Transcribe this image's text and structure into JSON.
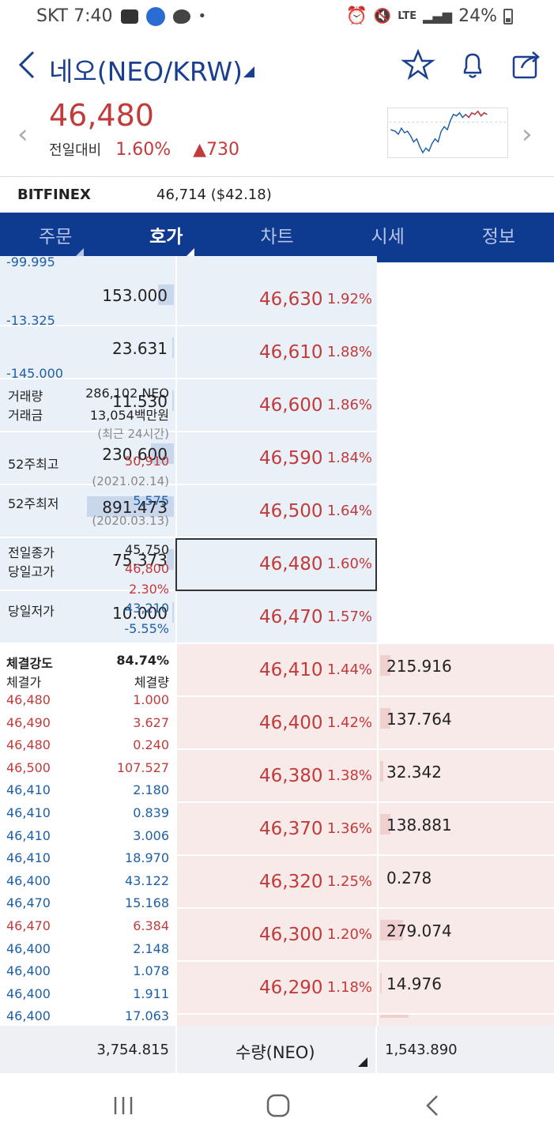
{
  "status": {
    "carrier_time": "SKT 7:40",
    "signal": "LTE",
    "battery": "24%"
  },
  "header": {
    "title": "네오(NEO/KRW)"
  },
  "price": {
    "current": "46,480",
    "change_label": "전일대비",
    "change_pct": "1.60%",
    "change_abs": "▲730"
  },
  "exchange": {
    "name": "BITFINEX",
    "value": "46,714 ($42.18)"
  },
  "tabs": [
    "주문",
    "호가",
    "차트",
    "시세",
    "정보"
  ],
  "asks": [
    {
      "qty": "153.000",
      "change": "-13.325",
      "price": "46,630",
      "pct": "1.92%",
      "bar": 0.09
    },
    {
      "qty": "23.631",
      "change": "-145.000",
      "price": "46,610",
      "pct": "1.88%",
      "bar": 0.01
    },
    {
      "qty": "11.530",
      "change": "",
      "price": "46,600",
      "pct": "1.86%",
      "bar": 0.01
    },
    {
      "qty": "230.600",
      "change": "",
      "price": "46,590",
      "pct": "1.84%",
      "bar": 0.13
    },
    {
      "qty": "891.473",
      "change": "",
      "price": "46,500",
      "pct": "1.64%",
      "bar": 0.5
    },
    {
      "qty": "75.373",
      "change": "",
      "price": "46,480",
      "pct": "1.60%",
      "bar": 0.04
    },
    {
      "qty": "10.000",
      "change": "",
      "price": "46,470",
      "pct": "1.57%",
      "bar": 0.01
    }
  ],
  "top_partial": "-99.995",
  "bids": [
    {
      "price": "46,410",
      "pct": "1.44%",
      "qty": "215.916",
      "bar": 0.06
    },
    {
      "price": "46,400",
      "pct": "1.42%",
      "qty": "137.764",
      "bar": 0.06
    },
    {
      "price": "46,380",
      "pct": "1.38%",
      "qty": "32.342",
      "bar": 0.02
    },
    {
      "price": "46,370",
      "pct": "1.36%",
      "qty": "138.881",
      "bar": 0.06
    },
    {
      "price": "46,320",
      "pct": "1.25%",
      "qty": "0.278",
      "bar": 0.0
    },
    {
      "price": "46,300",
      "pct": "1.20%",
      "qty": "279.074",
      "bar": 0.13
    },
    {
      "price": "46,290",
      "pct": "1.18%",
      "qty": "14.976",
      "bar": 0.01
    }
  ],
  "info": {
    "vol_label": "거래량",
    "vol_value": "286,102 NEO",
    "amt_label": "거래금",
    "amt_value": "13,054백만원",
    "period": "(최근 24시간)",
    "high52_label": "52주최고",
    "high52_value": "50,910",
    "high52_date": "(2021.02.14)",
    "low52_label": "52주최저",
    "low52_value": "5,575",
    "low52_date": "(2020.03.13)",
    "prev_label": "전일종가",
    "prev_value": "45,750",
    "dayhigh_label": "당일고가",
    "dayhigh_value": "46,800",
    "dayhigh_pct": "2.30%",
    "daylow_label": "당일저가",
    "daylow_value": "43,210",
    "daylow_pct": "-5.55%"
  },
  "trade_strength": {
    "label": "체결강도",
    "value": "84.74%",
    "col_price": "체결가",
    "col_qty": "체결량"
  },
  "trades": [
    {
      "p": "46,480",
      "q": "1.000",
      "c": "red"
    },
    {
      "p": "46,490",
      "q": "3.627",
      "c": "red"
    },
    {
      "p": "46,480",
      "q": "0.240",
      "c": "red"
    },
    {
      "p": "46,500",
      "q": "107.527",
      "c": "red"
    },
    {
      "p": "46,410",
      "q": "2.180",
      "c": "blue"
    },
    {
      "p": "46,410",
      "q": "0.839",
      "c": "blue"
    },
    {
      "p": "46,410",
      "q": "3.006",
      "c": "blue"
    },
    {
      "p": "46,410",
      "q": "18.970",
      "c": "blue"
    },
    {
      "p": "46,400",
      "q": "43.122",
      "c": "blue"
    },
    {
      "p": "46,470",
      "q": "15.168",
      "c": "blue"
    },
    {
      "p": "46,470",
      "q": "6.384",
      "c": "red"
    },
    {
      "p": "46,400",
      "q": "2.148",
      "c": "blue"
    },
    {
      "p": "46,400",
      "q": "1.078",
      "c": "blue"
    },
    {
      "p": "46,400",
      "q": "1.911",
      "c": "blue"
    },
    {
      "p": "46,400",
      "q": "17.063",
      "c": "blue"
    }
  ],
  "footer": {
    "ask_total": "3,754.815",
    "unit": "수량(NEO)",
    "bid_total": "1,543.890"
  },
  "colors": {
    "up": "#c23b3b",
    "down": "#1e5fa8",
    "tab_bg": "#0e3b8f"
  }
}
